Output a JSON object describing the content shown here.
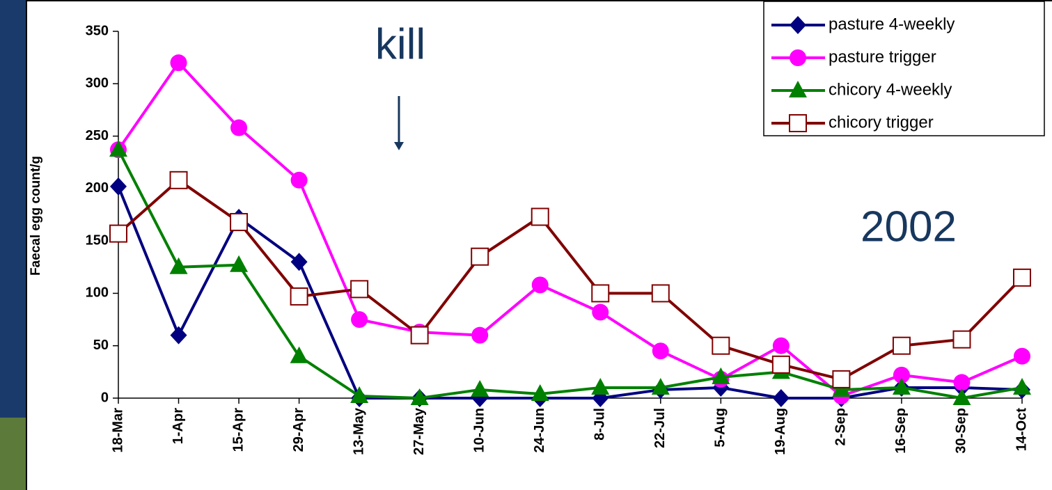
{
  "chart_data": {
    "type": "line",
    "y_label": "Faecal egg count/g",
    "annotations": [
      "kill",
      "2002"
    ],
    "categories": [
      "18-Mar",
      "1-Apr",
      "15-Apr",
      "29-Apr",
      "13-May",
      "27-May",
      "10-Jun",
      "24-Jun",
      "8-Jul",
      "22-Jul",
      "5-Aug",
      "19-Aug",
      "2-Sep",
      "16-Sep",
      "30-Sep",
      "14-Oct"
    ],
    "series": [
      {
        "name": "pasture 4-weekly",
        "color": "#000080",
        "marker": "diamond",
        "values": [
          202,
          60,
          172,
          130,
          0,
          0,
          0,
          0,
          0,
          8,
          10,
          0,
          0,
          10,
          10,
          8
        ]
      },
      {
        "name": "pasture trigger",
        "color": "#ff00ff",
        "marker": "circle",
        "values": [
          237,
          320,
          258,
          208,
          75,
          63,
          60,
          108,
          82,
          45,
          18,
          50,
          2,
          22,
          15,
          40
        ]
      },
      {
        "name": "chicory 4-weekly",
        "color": "#008000",
        "marker": "triangle",
        "values": [
          237,
          125,
          127,
          40,
          2,
          0,
          8,
          4,
          10,
          10,
          20,
          25,
          8,
          10,
          0,
          10
        ]
      },
      {
        "name": "chicory trigger",
        "color": "#800000",
        "marker": "square",
        "values": [
          157,
          208,
          168,
          97,
          104,
          60,
          135,
          173,
          100,
          100,
          50,
          32,
          18,
          50,
          56,
          115
        ]
      }
    ],
    "ylim": [
      0,
      350
    ],
    "yticks": [
      0,
      50,
      100,
      150,
      200,
      250,
      300,
      350
    ],
    "grid": false,
    "legend": "top-right"
  }
}
